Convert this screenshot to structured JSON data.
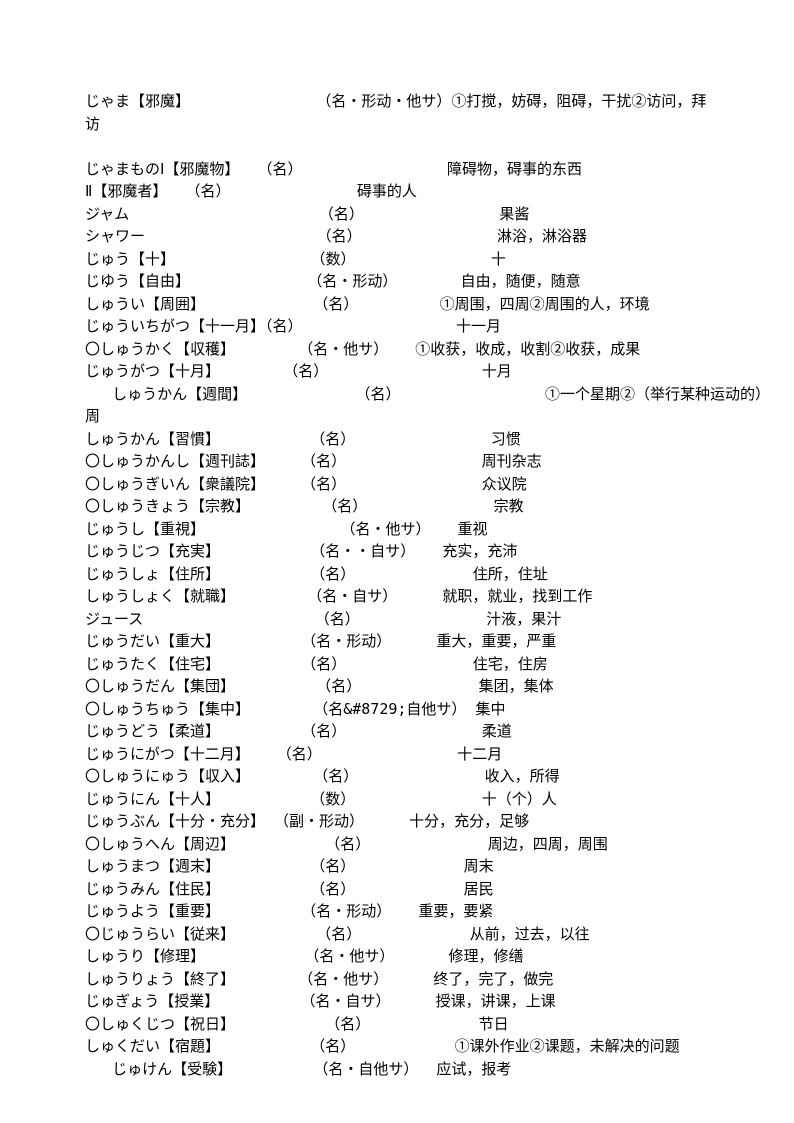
{
  "entries": [
    {
      "text": "じゃま【邪魔】              （名・形动・他サ）①打搅，妨碍，阻碍，干扰②访问，拜"
    },
    {
      "text": "访"
    },
    {
      "text": ""
    },
    {
      "text": "じゃまものⅠ【邪魔物】  （名）                障碍物，碍事的东西"
    },
    {
      "text": "Ⅱ【邪魔者】  （名）              碍事的人"
    },
    {
      "text": "ジャム                     （名）               果酱"
    },
    {
      "text": "シャワー                   （名）               淋浴，淋浴器"
    },
    {
      "text": "じゅう【十】               （数）               十"
    },
    {
      "text": "じゆう【自由】             （名・形动）       自由，随便，随意"
    },
    {
      "text": "しゅうい【周囲】            （名）         ①周围，四周②周围的人，环境"
    },
    {
      "text": "じゅういちがつ【十一月】（名）                 十一月"
    },
    {
      "text": "〇しゅうかく【収穫】       （名・他サ）   ①收获，收成，收割②收获，成果"
    },
    {
      "text": "じゅうがつ【十月】       （名）                 十月"
    },
    {
      "text": "   しゅうかん【週間】            （名）                ①一个星期②（举行某种运动的）"
    },
    {
      "text": "周"
    },
    {
      "text": "しゅうかん【習慣】          （名）               习惯"
    },
    {
      "text": "〇しゅうかんし【週刊誌】    （名）               周刊杂志"
    },
    {
      "text": "〇しゅうぎいん【衆議院】    （名）               众议院"
    },
    {
      "text": "〇しゅうきょう【宗教】        （名）              宗教"
    },
    {
      "text": "じゅうし【重視】               （名・他サ）   重视"
    },
    {
      "text": "じゅうじつ【充実】          （名・・自サ）   充实，充沛"
    },
    {
      "text": "じゅうしょ【住所】          （名）             住所，住址"
    },
    {
      "text": "しゅうしょく【就職】        （名・自サ）     就职，就业，找到工作"
    },
    {
      "text": "ジュース                   （名）              汁液，果汁"
    },
    {
      "text": "じゅうだい【重大】         （名・形动）     重大，重要，严重"
    },
    {
      "text": "じゅうたく【住宅】         （名）              住宅，住房"
    },
    {
      "text": "〇しゅうだん【集団】         （名）             集团，集体"
    },
    {
      "text": "〇しゅうちゅう【集中】       （名&#8729;自他サ） 集中"
    },
    {
      "text": "じゅうどう【柔道】         （名）               柔道"
    },
    {
      "text": "じゅうにがつ【十二月】   （名）               十二月"
    },
    {
      "text": "〇しゅうにゅう【収入】       （名）              收入，所得"
    },
    {
      "text": "じゅうにん【十人】          （数）              十（个）人"
    },
    {
      "text": "じゅうぶん【十分・充分】 （副・形动）     十分，充分，足够"
    },
    {
      "text": "〇しゅうへん【周辺】          （名）             周边，四周，周围"
    },
    {
      "text": "しゅうまつ【週末】          （名）            周末"
    },
    {
      "text": "じゅうみん【住民】          （名）            居民"
    },
    {
      "text": "じゅうよう【重要】         （名・形动）   重要，要紧"
    },
    {
      "text": "〇じゅうらい【従来】         （名）            从前，过去，以往"
    },
    {
      "text": "しゅうり【修理】           （名・他サ）      修理，修缮"
    },
    {
      "text": "しゅうりょう【終了】       （名・他サ）     终了，完了，做完"
    },
    {
      "text": "じゅぎょう【授業】         （名・自サ）     授课，讲课，上课"
    },
    {
      "text": "〇しゅくじつ【祝日】          （名）            节日"
    },
    {
      "text": "しゅくだい【宿題】          （名）           ①课外作业②课题，未解决的问题"
    },
    {
      "text": "   じゅけん【受験】         （名・自他サ）  应试，报考"
    }
  ]
}
